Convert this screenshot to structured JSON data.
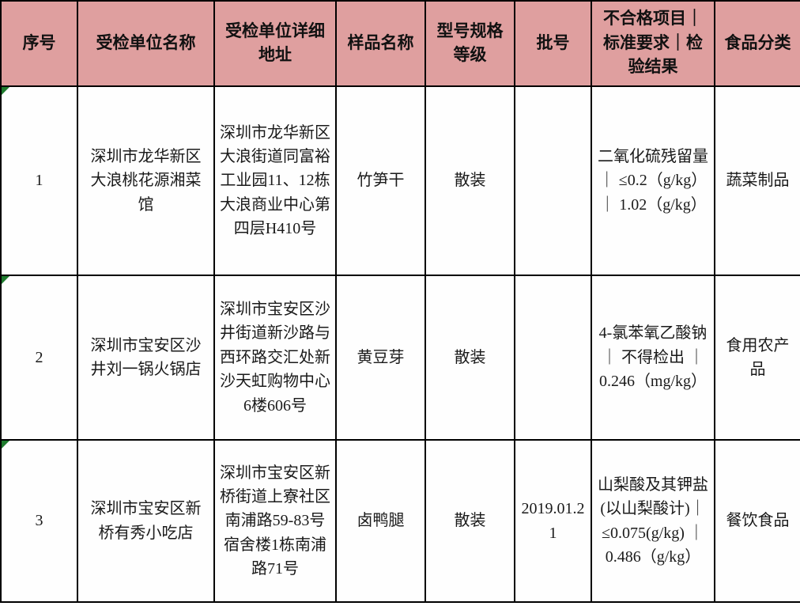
{
  "colors": {
    "header_bg": "#df9f9f",
    "border": "#000000",
    "corner_marker_green": "#1e7b2e",
    "body_bg": "#fefefe",
    "text": "#1a1a1a"
  },
  "table": {
    "columns": [
      "序号",
      "受检单位名称",
      "受检单位详细地址",
      "样品名称",
      "型号规格等级",
      "批号",
      "不合格项目｜标准要求｜检验结果",
      "食品分类"
    ],
    "rows": [
      {
        "seq": "1",
        "unit_name": "深圳市龙华新区大浪桃花源湘菜馆",
        "unit_address": "深圳市龙华新区大浪街道同富裕工业园11、12栋大浪商业中心第四层H410号",
        "sample_name": "竹笋干",
        "spec_grade": "散装",
        "batch_no": "",
        "violation": "二氧化硫残留量｜ ≤0.2（g/kg） ｜ 1.02（g/kg）",
        "food_category": "蔬菜制品"
      },
      {
        "seq": "2",
        "unit_name": "深圳市宝安区沙井刘一锅火锅店",
        "unit_address": "深圳市宝安区沙井街道新沙路与西环路交汇处新沙天虹购物中心6楼606号",
        "sample_name": "黄豆芽",
        "spec_grade": "散装",
        "batch_no": "",
        "violation": "4-氯苯氧乙酸钠｜ 不得检出 ｜ 0.246（mg/kg）",
        "food_category": "食用农产品"
      },
      {
        "seq": "3",
        "unit_name": "深圳市宝安区新桥有秀小吃店",
        "unit_address": "深圳市宝安区新桥街道上寮社区南浦路59-83号宿舍楼1栋南浦路71号",
        "sample_name": "卤鸭腿",
        "spec_grade": "散装",
        "batch_no": "2019.01.21",
        "violation": "山梨酸及其钾盐(以山梨酸计)｜≤0.075(g/kg) ｜ 0.486（g/kg）",
        "food_category": "餐饮食品"
      }
    ]
  }
}
